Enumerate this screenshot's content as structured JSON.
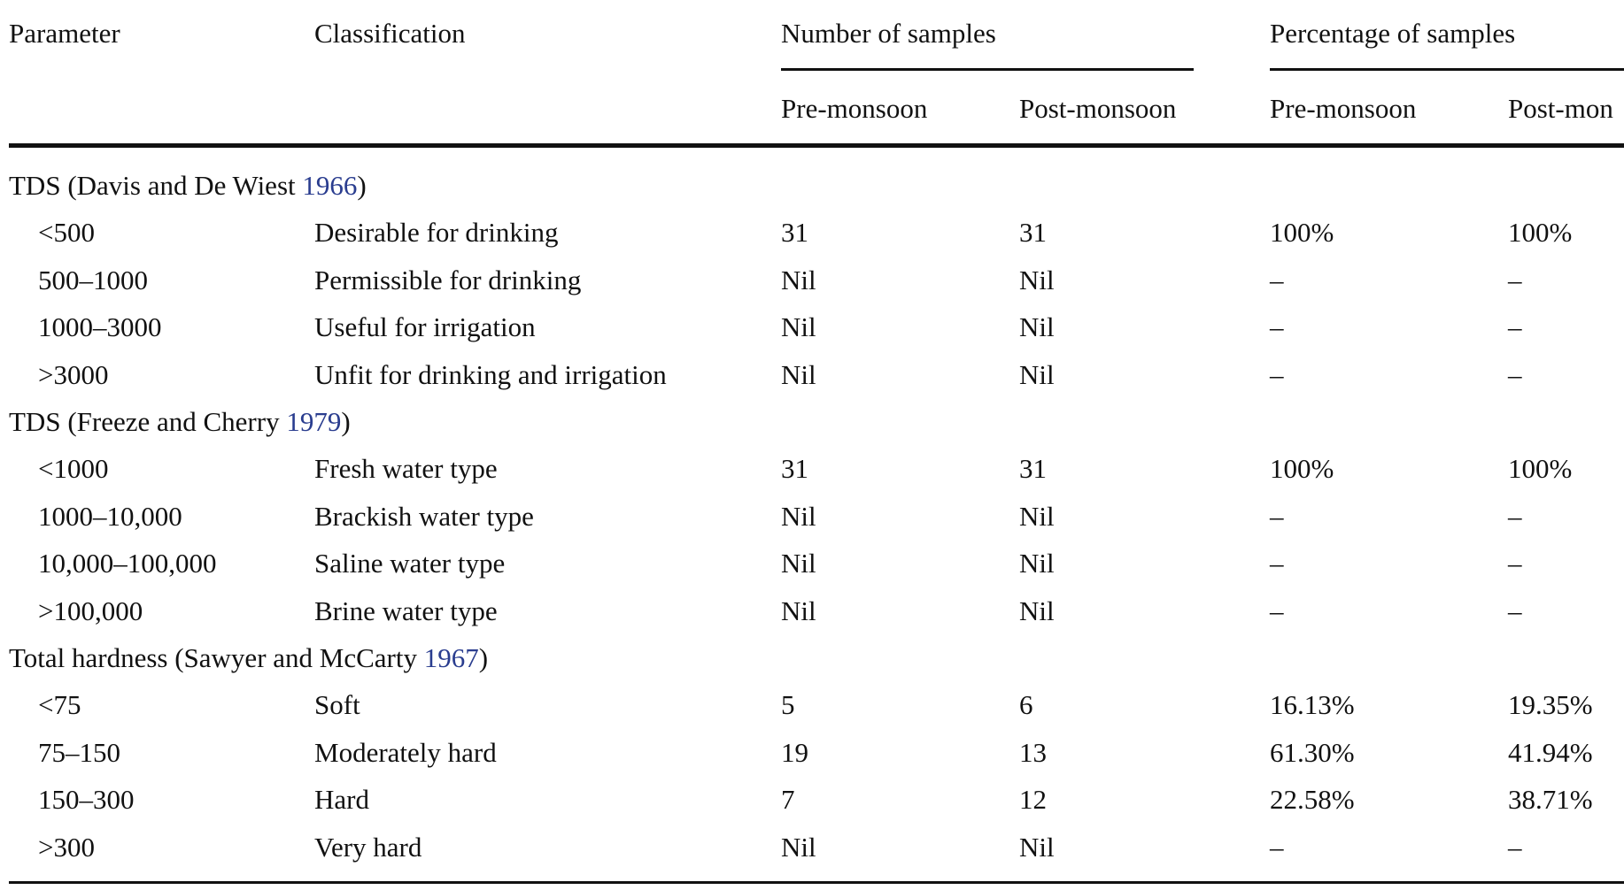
{
  "header": {
    "parameter": "Parameter",
    "classification": "Classification",
    "number_of_samples": "Number of samples",
    "percentage_of_samples": "Percentage of samples",
    "pre_monsoon_1": "Pre-monsoon",
    "post_monsoon_1": "Post-monsoon",
    "pre_monsoon_2": "Pre-monsoon",
    "post_monsoon_2": "Post-mon"
  },
  "groups": [
    {
      "title_text": "TDS (Davis and De Wiest ",
      "title_year": "1966",
      "title_close": ")",
      "rows": [
        {
          "range": "<500",
          "classification": "Desirable for drinking",
          "n_pre": "31",
          "n_post": "31",
          "p_pre": "100%",
          "p_post": "100%"
        },
        {
          "range": "500–1000",
          "classification": "Permissible for drinking",
          "n_pre": "Nil",
          "n_post": "Nil",
          "p_pre": "–",
          "p_post": "–"
        },
        {
          "range": "1000–3000",
          "classification": "Useful for irrigation",
          "n_pre": "Nil",
          "n_post": "Nil",
          "p_pre": "–",
          "p_post": "–"
        },
        {
          "range": ">3000",
          "classification": "Unfit for drinking and irrigation",
          "n_pre": "Nil",
          "n_post": "Nil",
          "p_pre": "–",
          "p_post": "–"
        }
      ]
    },
    {
      "title_text": "TDS (Freeze and Cherry ",
      "title_year": "1979",
      "title_close": ")",
      "rows": [
        {
          "range": "<1000",
          "classification": "Fresh water type",
          "n_pre": "31",
          "n_post": "31",
          "p_pre": "100%",
          "p_post": "100%"
        },
        {
          "range": "1000–10,000",
          "classification": "Brackish water type",
          "n_pre": "Nil",
          "n_post": "Nil",
          "p_pre": "–",
          "p_post": "–"
        },
        {
          "range": "10,000–100,000",
          "classification": "Saline water type",
          "n_pre": "Nil",
          "n_post": "Nil",
          "p_pre": "–",
          "p_post": "–"
        },
        {
          "range": ">100,000",
          "classification": "Brine water type",
          "n_pre": "Nil",
          "n_post": "Nil",
          "p_pre": "–",
          "p_post": "–"
        }
      ]
    },
    {
      "title_text": "Total hardness (Sawyer and McCarty ",
      "title_year": "1967",
      "title_close": ")",
      "rows": [
        {
          "range": "<75",
          "classification": "Soft",
          "n_pre": "5",
          "n_post": "6",
          "p_pre": "16.13%",
          "p_post": "19.35%"
        },
        {
          "range": "75–150",
          "classification": "Moderately hard",
          "n_pre": "19",
          "n_post": "13",
          "p_pre": "61.30%",
          "p_post": "41.94%"
        },
        {
          "range": "150–300",
          "classification": "Hard",
          "n_pre": "7",
          "n_post": "12",
          "p_pre": "22.58%",
          "p_post": "38.71%"
        },
        {
          "range": ">300",
          "classification": "Very hard",
          "n_pre": "Nil",
          "n_post": "Nil",
          "p_pre": "–",
          "p_post": "–"
        }
      ]
    }
  ],
  "colors": {
    "text": "#111111",
    "reference_link": "#2a3d8f"
  }
}
